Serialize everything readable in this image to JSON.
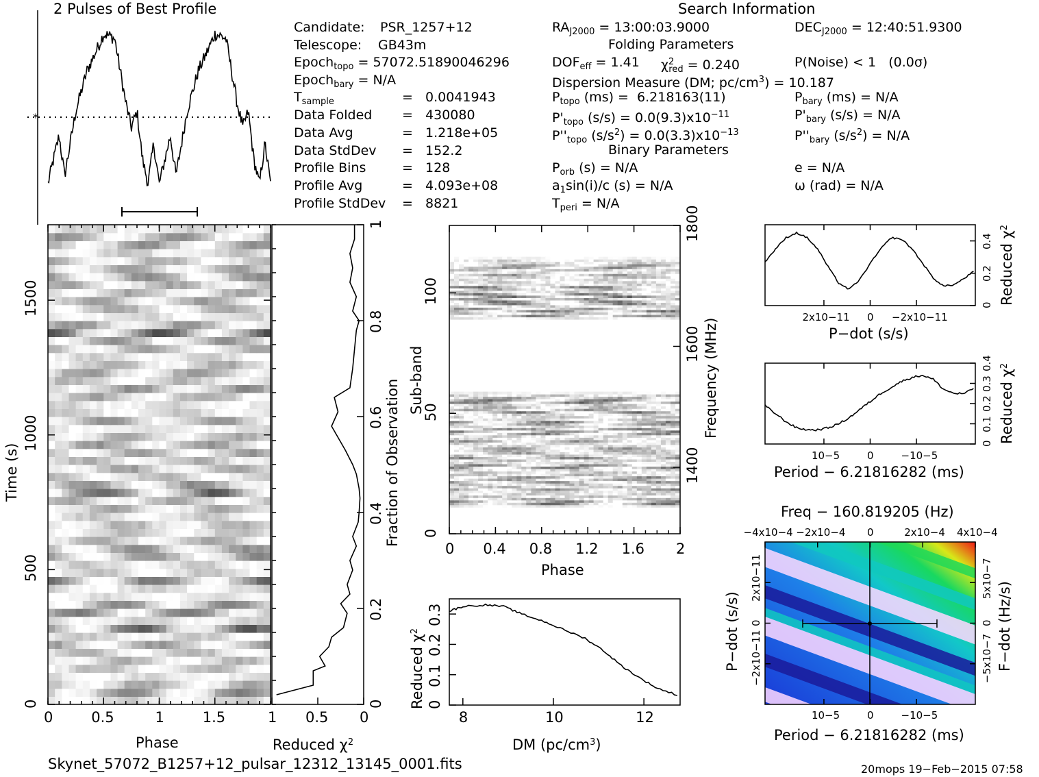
{
  "header": {
    "profile_title": "2 Pulses of Best Profile",
    "search_title": "Search Information",
    "folding_title": "Folding Parameters",
    "binary_title": "Binary Parameters",
    "candidate_label": "Candidate:",
    "candidate": "PSR_1257+12",
    "telescope_label": "Telescope:",
    "telescope": "GB43m",
    "epoch_topo_label": "Epoch",
    "epoch_topo_sub": "topo",
    "epoch_topo": "= 57072.51890046296",
    "epoch_bary_label": "Epoch",
    "epoch_bary_sub": "bary",
    "epoch_bary": "= N/A",
    "tsample_label": "T",
    "tsample_sub": "sample",
    "tsample": "=   0.0041943",
    "data_folded_label": "Data Folded",
    "data_folded": "=   430080",
    "data_avg_label": "Data Avg",
    "data_avg": "=   1.218e+05",
    "data_std_label": "Data StdDev",
    "data_std": "=   152.2",
    "prof_bins_label": "Profile Bins",
    "prof_bins": "=   128",
    "prof_avg_label": "Profile Avg",
    "prof_avg": "=   4.093e+08",
    "prof_std_label": "Profile StdDev",
    "prof_std": "=   8821",
    "ra_label": "RA",
    "ra_sub": "J2000",
    "ra": " = 13:00:03.9000",
    "dec_label": "DEC",
    "dec_sub": "J2000",
    "dec": " = 12:40:51.9300",
    "dof_label": "DOF",
    "dof_sub": "eff",
    "dof": " = 1.41",
    "chi_label": "χ",
    "chi_sup": "2",
    "chi_sub": "red",
    "chi": " = 0.240",
    "pnoise": "P(Noise) < 1   (0.0σ)",
    "dm_text": "Dispersion Measure (DM; pc/cm",
    "dm_sup": "3",
    "dm_val": ") = 10.187",
    "ptopo_label": "P",
    "ptopo_sub": "topo",
    "ptopo": " (ms) =  6.218163(11)",
    "pbary_label": "P",
    "pbary_sub": "bary",
    "pbary": " (ms) = N/A",
    "pdtopo_label": "P'",
    "pdtopo_sub": "topo",
    "pdtopo": " (s/s) = 0.0(9.3)x10",
    "pdtopo_exp": "−11",
    "pdbary_label": "P'",
    "pdbary_sub": "bary",
    "pdbary": " (s/s) = N/A",
    "pddtopo_label": "P''",
    "pddtopo_sub": "topo",
    "pddtopo": " (s/s",
    "pddtopo_sup": "2",
    "pddtopo_mid": ") = 0.0(3.3)x10",
    "pddtopo_exp": "−13",
    "pddbary_label": "P''",
    "pddbary_sub": "bary",
    "pddbary": " (s/s",
    "pddbary_sup": "2",
    "pddbary_end": ") = N/A",
    "porb_label": "P",
    "porb_sub": "orb",
    "porb": " (s) = N/A",
    "e": "e = N/A",
    "a1_label": "a",
    "a1_sub": "1",
    "a1": "sin(i)/c (s) = N/A",
    "omega": "ω (rad) = N/A",
    "tperi_label": "T",
    "tperi_sub": "peri",
    "tperi": " = N/A"
  },
  "footer": {
    "filename": "Skynet_57072_B1257+12_pulsar_12312_13145_0001.fits",
    "stamp": "20mops 19−Feb−2015 07:58"
  },
  "chart_data": [
    {
      "id": "profile",
      "type": "line",
      "title": "2 Pulses of Best Profile",
      "x_range": [
        0,
        2
      ],
      "peaks_phase": [
        0.55,
        0.93,
        1.55,
        1.93
      ],
      "shape": "two noisy pulse cycles, maxima near phase 0.6 and 1.6, minima near 0.0, 1.0 and 2.0"
    },
    {
      "id": "time_phase",
      "type": "heatmap",
      "xlabel": "Phase",
      "ylabel": "Time (s)",
      "x_ticks": [
        0,
        0.5,
        1,
        1.5
      ],
      "y_ticks": [
        0,
        500,
        1000,
        1500
      ],
      "ylim": [
        0,
        1780
      ],
      "colormap": "grayscale"
    },
    {
      "id": "time_chi",
      "type": "line",
      "xlabel": "Reduced χ2",
      "ylabel": "Fraction of Observation",
      "x_ticks": [
        1,
        0.5,
        0
      ],
      "y_ticks": [
        0,
        0.2,
        0.4,
        0.6,
        0.8,
        1
      ],
      "x": [
        0.95,
        0.55,
        0.55,
        0.42,
        0.48,
        0.38,
        0.35,
        0.22,
        0.18,
        0.25,
        0.15,
        0.18,
        0.12,
        0.15,
        0.08,
        0.12,
        0.06,
        0.05,
        0.04,
        0.05,
        0.08,
        0.12,
        0.2,
        0.35,
        0.28,
        0.32,
        0.15,
        0.12,
        0.1,
        0.08,
        0.05,
        0.12,
        0.08,
        0.15,
        0.12,
        0.15,
        0.1,
        0.1
      ],
      "y": [
        0.02,
        0.04,
        0.07,
        0.08,
        0.1,
        0.12,
        0.14,
        0.16,
        0.19,
        0.21,
        0.23,
        0.25,
        0.28,
        0.3,
        0.33,
        0.35,
        0.38,
        0.4,
        0.43,
        0.45,
        0.48,
        0.5,
        0.53,
        0.58,
        0.61,
        0.64,
        0.66,
        0.7,
        0.74,
        0.78,
        0.8,
        0.82,
        0.85,
        0.88,
        0.91,
        0.94,
        0.97,
        1.0
      ]
    },
    {
      "id": "subband_phase",
      "type": "heatmap",
      "xlabel": "Phase",
      "ylabel": "Sub-band",
      "y2label": "Frequency (MHz)",
      "x_ticks": [
        "0",
        "0.4",
        "0.8",
        "1.2",
        "1.6",
        "2"
      ],
      "y_ticks": [
        0,
        50,
        100
      ],
      "y2_ticks": [
        1400,
        1600,
        1800
      ],
      "ylim": [
        0,
        128
      ],
      "bands_with_signal": [
        [
          11,
          59
        ],
        [
          89,
          115
        ]
      ],
      "colormap": "grayscale"
    },
    {
      "id": "dm_chi",
      "type": "line",
      "xlabel": "DM (pc/cm3)",
      "ylabel": "Reduced χ2",
      "x_ticks": [
        8,
        10,
        12
      ],
      "y_ticks": [
        "0",
        "0.1",
        "0.2",
        "0.3"
      ],
      "xlim": [
        7.7,
        12.8
      ],
      "ylim": [
        0,
        0.35
      ],
      "x": [
        7.7,
        8.0,
        8.5,
        8.9,
        9.3,
        9.8,
        10.2,
        10.7,
        11.1,
        11.5,
        11.9,
        12.3,
        12.8
      ],
      "y": [
        0.31,
        0.325,
        0.33,
        0.325,
        0.3,
        0.275,
        0.25,
        0.22,
        0.18,
        0.13,
        0.09,
        0.055,
        0.03
      ]
    },
    {
      "id": "pdot_chi",
      "type": "line",
      "xlabel": "P−dot (s/s)",
      "ylabel": "Reduced χ2",
      "x_ticks": [
        "2x10−11",
        "0",
        "−2x10−11"
      ],
      "y_ticks": [
        "0",
        "0.2",
        "0.4"
      ],
      "ylim": [
        0,
        0.5
      ],
      "x": [
        0,
        0.05,
        0.1,
        0.15,
        0.2,
        0.25,
        0.3,
        0.35,
        0.4,
        0.45,
        0.5,
        0.55,
        0.6,
        0.65,
        0.7,
        0.75,
        0.8,
        0.85,
        0.9,
        0.95,
        1.0
      ],
      "y": [
        0.27,
        0.35,
        0.42,
        0.45,
        0.42,
        0.35,
        0.24,
        0.14,
        0.1,
        0.16,
        0.26,
        0.35,
        0.42,
        0.41,
        0.35,
        0.26,
        0.17,
        0.12,
        0.13,
        0.17,
        0.22
      ]
    },
    {
      "id": "period_chi",
      "type": "line",
      "xlabel": "Period − 6.21816282 (ms)",
      "ylabel": "Reduced χ2",
      "x_ticks": [
        "10−5",
        "0",
        "−10−5"
      ],
      "y_ticks": [
        "0",
        "0.1",
        "0.2",
        "0.3",
        "0.4"
      ],
      "ylim": [
        0,
        0.4
      ],
      "x": [
        0,
        0.05,
        0.1,
        0.15,
        0.2,
        0.25,
        0.3,
        0.35,
        0.4,
        0.45,
        0.5,
        0.55,
        0.6,
        0.65,
        0.7,
        0.75,
        0.8,
        0.85,
        0.9,
        0.95,
        1.0
      ],
      "y": [
        0.19,
        0.15,
        0.11,
        0.08,
        0.07,
        0.07,
        0.08,
        0.1,
        0.13,
        0.17,
        0.21,
        0.25,
        0.28,
        0.31,
        0.33,
        0.34,
        0.32,
        0.27,
        0.25,
        0.25,
        0.28
      ]
    },
    {
      "id": "p_pdot",
      "type": "heatmap",
      "title": "Freq − 160.819205 (Hz)",
      "xlabel": "Period − 6.21816282 (ms)",
      "ylabel": "P−dot (s/s)",
      "y2label": "F−dot (Hz/s)",
      "x_ticks": [
        "10−5",
        "0",
        "−10−5"
      ],
      "x2_ticks": [
        "−4x10−4",
        "−2x10−4",
        "0",
        "2x10−4",
        "4x10−4"
      ],
      "y_ticks": [
        "2x10−11",
        "0",
        "−2x10−11"
      ],
      "y2_ticks": [
        "−5x10−7",
        "0",
        "5x10−7"
      ],
      "colormap": "rainbow"
    }
  ]
}
